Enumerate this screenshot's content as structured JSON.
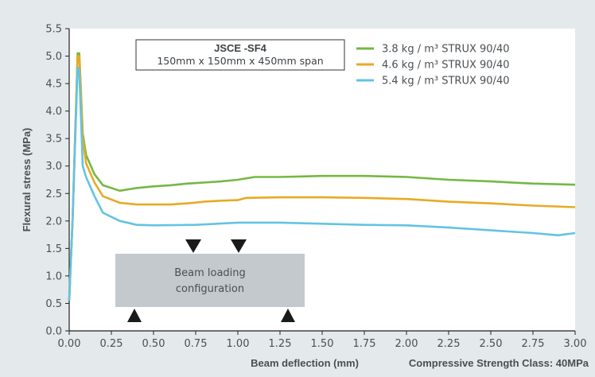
{
  "chart_data": {
    "type": "line",
    "xlabel": "Beam deflection (mm)",
    "ylabel": "Flexural stress (MPa)",
    "xlim": [
      0,
      3.0
    ],
    "ylim": [
      0,
      5.5
    ],
    "x_ticks": [
      "0.00",
      "0.25",
      "0.50",
      "0.75",
      "1.00",
      "1.25",
      "1.50",
      "1.75",
      "2.00",
      "2.25",
      "2.50",
      "2.75",
      "3.00"
    ],
    "y_ticks": [
      "0.0",
      "0.5",
      "1.0",
      "1.5",
      "2.0",
      "2.5",
      "3.0",
      "3.5",
      "4.0",
      "4.5",
      "5.0",
      "5.5"
    ],
    "grid": false,
    "legend_position": "top-right",
    "footer_note": "Compressive Strength Class: 40MPa",
    "info_box": {
      "title": "JSCE -SF4",
      "subtitle": "150mm x 150mm x 450mm span"
    },
    "beam_diagram": {
      "label_line1": "Beam loading",
      "label_line2": "configuration"
    },
    "series": [
      {
        "name": "3.8 kg / m³ STRUX 90/40",
        "color": "#74b843",
        "points": [
          [
            0,
            0.55
          ],
          [
            0.02,
            2.0
          ],
          [
            0.05,
            5.05
          ],
          [
            0.06,
            5.05
          ],
          [
            0.08,
            3.6
          ],
          [
            0.1,
            3.2
          ],
          [
            0.15,
            2.85
          ],
          [
            0.2,
            2.65
          ],
          [
            0.3,
            2.55
          ],
          [
            0.4,
            2.6
          ],
          [
            0.5,
            2.63
          ],
          [
            0.6,
            2.65
          ],
          [
            0.7,
            2.68
          ],
          [
            0.8,
            2.7
          ],
          [
            0.9,
            2.72
          ],
          [
            1.0,
            2.75
          ],
          [
            1.1,
            2.8
          ],
          [
            1.25,
            2.8
          ],
          [
            1.5,
            2.82
          ],
          [
            1.75,
            2.82
          ],
          [
            2.0,
            2.8
          ],
          [
            2.25,
            2.75
          ],
          [
            2.5,
            2.72
          ],
          [
            2.75,
            2.68
          ],
          [
            3.0,
            2.66
          ]
        ]
      },
      {
        "name": "4.6 kg / m³ STRUX 90/40",
        "color": "#e8a925",
        "points": [
          [
            0,
            0.55
          ],
          [
            0.02,
            2.0
          ],
          [
            0.05,
            5.0
          ],
          [
            0.06,
            5.0
          ],
          [
            0.08,
            3.5
          ],
          [
            0.1,
            3.05
          ],
          [
            0.15,
            2.7
          ],
          [
            0.2,
            2.45
          ],
          [
            0.3,
            2.33
          ],
          [
            0.4,
            2.3
          ],
          [
            0.5,
            2.3
          ],
          [
            0.6,
            2.3
          ],
          [
            0.7,
            2.32
          ],
          [
            0.8,
            2.35
          ],
          [
            0.9,
            2.37
          ],
          [
            1.0,
            2.38
          ],
          [
            1.05,
            2.42
          ],
          [
            1.25,
            2.43
          ],
          [
            1.5,
            2.43
          ],
          [
            1.75,
            2.42
          ],
          [
            2.0,
            2.4
          ],
          [
            2.25,
            2.35
          ],
          [
            2.5,
            2.32
          ],
          [
            2.75,
            2.28
          ],
          [
            3.0,
            2.25
          ]
        ]
      },
      {
        "name": "5.4 kg / m³ STRUX 90/40",
        "color": "#63c3e3",
        "points": [
          [
            0,
            0.55
          ],
          [
            0.02,
            2.0
          ],
          [
            0.05,
            4.8
          ],
          [
            0.06,
            4.7
          ],
          [
            0.08,
            3.0
          ],
          [
            0.1,
            2.8
          ],
          [
            0.15,
            2.45
          ],
          [
            0.2,
            2.15
          ],
          [
            0.3,
            2.0
          ],
          [
            0.4,
            1.93
          ],
          [
            0.5,
            1.92
          ],
          [
            0.75,
            1.93
          ],
          [
            1.0,
            1.97
          ],
          [
            1.25,
            1.97
          ],
          [
            1.5,
            1.95
          ],
          [
            1.75,
            1.93
          ],
          [
            2.0,
            1.92
          ],
          [
            2.25,
            1.88
          ],
          [
            2.5,
            1.83
          ],
          [
            2.75,
            1.78
          ],
          [
            2.9,
            1.74
          ],
          [
            3.0,
            1.78
          ]
        ]
      }
    ]
  }
}
